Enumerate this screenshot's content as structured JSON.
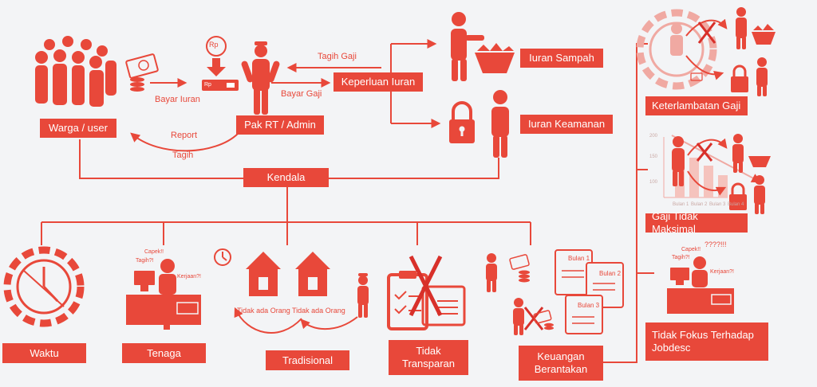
{
  "nodes": {
    "warga": "Warga / user",
    "pak_rt": "Pak RT / Admin",
    "keperluan": "Keperluan Iuran",
    "iuran_sampah": "Iuran Sampah",
    "iuran_keamanan": "Iuran Keamanan",
    "kendala": "Kendala",
    "waktu": "Waktu",
    "tenaga": "Tenaga",
    "tradisional": "Tradisional",
    "tidak_transparan": "Tidak Transparan",
    "keuangan": "Keuangan Berantakan",
    "keterlambatan": "Keterlambatan Gaji",
    "gaji_tidak": "Gaji Tidak Maksimal",
    "tidak_fokus": "Tidak Fokus Terhadap Jobdesc"
  },
  "edge_labels": {
    "bayar_iuran": "Bayar Iuran",
    "tagih_gaji": "Tagih Gaji",
    "bayar_gaji": "Bayar Gaji",
    "report": "Report",
    "tagih": "Tagih",
    "tidak_ada_orang_1": "Tidak ada Orang",
    "tidak_ada_orang_2": "Tidak ada Orang"
  },
  "icon_text": {
    "rp": "Rp",
    "rp_small": "Rp",
    "capek": "Capek!!",
    "tagih_q": "Tagih?!",
    "kerjaan": "Kerjaan?!",
    "capek2": "Capek!!",
    "tagih_q2": "Tagih?!",
    "kerjaan2": "Kerjaan?!",
    "question_marks": "????!!!",
    "bulan1": "Bulan 1",
    "bulan2": "Bulan 2",
    "bulan3": "Bulan 3"
  },
  "mini_chart": {
    "y_ticks": [
      "200",
      "150",
      "100"
    ],
    "x_ticks": [
      "Bulan 1",
      "Bulan 2",
      "Bulan 3",
      "Bulan 4"
    ]
  },
  "colors": {
    "accent": "#e8483a",
    "faded": "#f0a9a2",
    "background": "#f3f4f6"
  }
}
